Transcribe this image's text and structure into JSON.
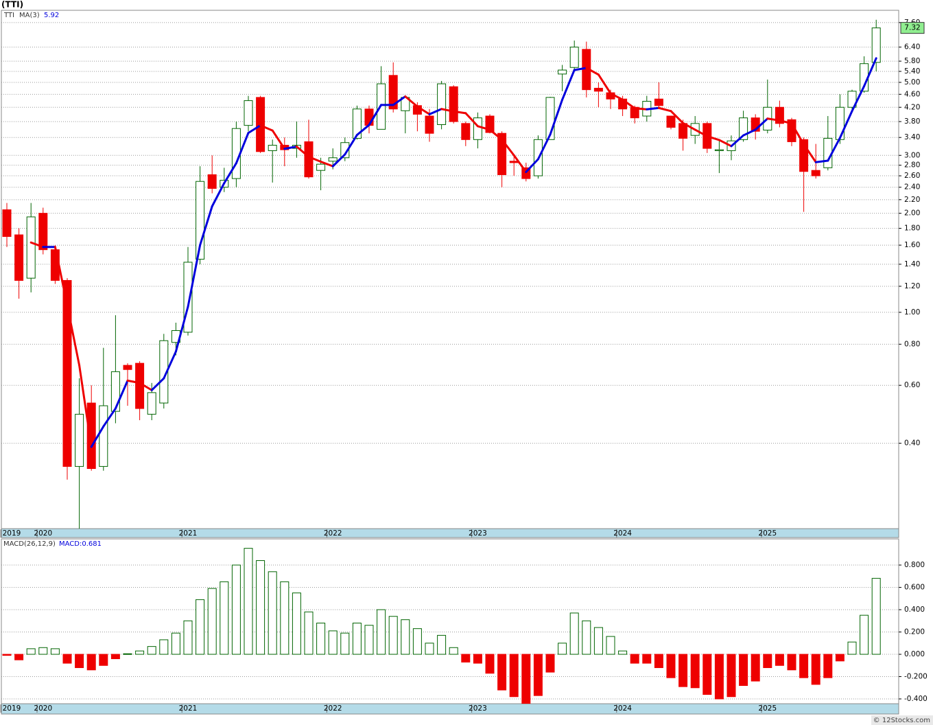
{
  "chart_data": [
    {
      "type": "candlestick",
      "title": "(TTI)",
      "symbol": "TTI",
      "log_scale": true,
      "grid": true,
      "up_color": "#006400",
      "down_color": "#ee0000",
      "last_price_color": "#90ee90",
      "categories": [
        "2019",
        null,
        null,
        "2020",
        null,
        null,
        null,
        null,
        null,
        null,
        null,
        null,
        null,
        null,
        null,
        "2021",
        null,
        null,
        null,
        null,
        null,
        null,
        null,
        null,
        null,
        null,
        null,
        "2022",
        null,
        null,
        null,
        null,
        null,
        null,
        null,
        null,
        null,
        null,
        null,
        "2023",
        null,
        null,
        null,
        null,
        null,
        null,
        null,
        null,
        null,
        null,
        null,
        "2024",
        null,
        null,
        null,
        null,
        null,
        null,
        null,
        null,
        null,
        null,
        null,
        "2025",
        null,
        null,
        null,
        null,
        null,
        null,
        null,
        null,
        null
      ],
      "open": [
        2.05,
        1.72,
        1.27,
        2.0,
        1.55,
        1.25,
        0.34,
        0.53,
        0.34,
        0.5,
        0.69,
        0.7,
        0.49,
        0.53,
        0.81,
        0.87,
        1.45,
        2.62,
        2.4,
        2.55,
        3.7,
        4.5,
        3.1,
        3.22,
        3.15,
        3.3,
        2.7,
        2.88,
        2.95,
        3.38,
        4.15,
        3.6,
        5.25,
        4.1,
        4.25,
        3.95,
        3.72,
        4.85,
        3.75,
        3.35,
        3.95,
        3.5,
        2.88,
        2.75,
        2.6,
        3.35,
        5.3,
        5.55,
        6.3,
        4.8,
        4.65,
        4.45,
        4.2,
        3.95,
        4.45,
        3.95,
        3.75,
        3.45,
        3.75,
        3.1,
        3.1,
        3.35,
        3.9,
        3.58,
        4.2,
        3.85,
        3.35,
        2.7,
        2.75,
        3.35,
        4.2,
        4.7,
        5.75
      ],
      "high": [
        2.15,
        1.8,
        2.15,
        2.08,
        1.6,
        1.27,
        0.63,
        0.6,
        0.78,
        0.98,
        0.7,
        0.71,
        0.61,
        0.86,
        0.93,
        1.58,
        2.78,
        3.0,
        2.75,
        3.8,
        4.55,
        4.55,
        3.35,
        3.4,
        3.8,
        3.85,
        2.95,
        3.15,
        3.4,
        4.25,
        4.25,
        5.6,
        5.75,
        4.55,
        4.35,
        4.15,
        5.05,
        4.9,
        3.8,
        4.05,
        4.0,
        3.55,
        3.0,
        2.85,
        3.45,
        4.52,
        5.65,
        6.7,
        6.65,
        5.0,
        4.75,
        4.55,
        4.25,
        4.55,
        5.0,
        3.95,
        3.85,
        3.95,
        3.8,
        3.35,
        3.45,
        4.1,
        4.0,
        5.1,
        4.4,
        3.9,
        3.4,
        3.25,
        3.95,
        4.6,
        4.75,
        6.0,
        7.75
      ],
      "low": [
        1.58,
        1.1,
        1.15,
        1.5,
        1.22,
        0.31,
        0.22,
        0.33,
        0.33,
        0.46,
        0.52,
        0.47,
        0.47,
        0.51,
        0.74,
        0.85,
        1.4,
        2.3,
        2.32,
        2.4,
        3.55,
        3.05,
        2.48,
        2.78,
        2.95,
        2.55,
        2.35,
        2.72,
        2.88,
        3.35,
        3.5,
        3.6,
        4.05,
        3.5,
        3.55,
        3.3,
        3.6,
        3.75,
        3.2,
        3.15,
        3.5,
        2.4,
        2.6,
        2.5,
        2.55,
        3.35,
        4.7,
        5.45,
        4.5,
        4.2,
        4.15,
        3.95,
        3.75,
        3.8,
        4.2,
        3.6,
        3.1,
        3.25,
        3.05,
        2.65,
        2.9,
        3.3,
        3.35,
        3.5,
        3.65,
        3.2,
        2.02,
        2.55,
        2.7,
        3.25,
        4.05,
        4.65,
        5.4
      ],
      "close": [
        1.7,
        1.25,
        1.95,
        1.55,
        1.25,
        0.34,
        0.49,
        0.335,
        0.52,
        0.66,
        0.67,
        0.51,
        0.57,
        0.82,
        0.88,
        1.42,
        2.5,
        2.38,
        2.52,
        3.62,
        4.4,
        3.08,
        3.22,
        3.12,
        3.22,
        2.58,
        2.82,
        2.95,
        3.28,
        4.15,
        3.7,
        4.95,
        4.15,
        4.5,
        4.0,
        3.5,
        4.95,
        3.8,
        3.35,
        3.9,
        3.52,
        2.62,
        2.85,
        2.55,
        3.35,
        4.5,
        5.45,
        6.4,
        4.75,
        4.7,
        4.45,
        4.15,
        3.9,
        4.38,
        4.25,
        3.65,
        3.38,
        3.75,
        3.15,
        3.12,
        3.32,
        3.9,
        3.55,
        4.2,
        3.75,
        3.3,
        2.68,
        2.6,
        3.38,
        4.2,
        4.7,
        5.7,
        7.32
      ],
      "overlay": {
        "name": "MA(3)",
        "up_color": "#0000dd",
        "down_color": "#ee0000",
        "values": [
          null,
          null,
          1.63,
          1.58,
          1.58,
          1.05,
          0.69,
          0.39,
          0.45,
          0.51,
          0.62,
          0.61,
          0.58,
          0.63,
          0.76,
          1.04,
          1.6,
          2.1,
          2.47,
          2.84,
          3.51,
          3.7,
          3.57,
          3.14,
          3.19,
          2.97,
          2.87,
          2.78,
          3.02,
          3.46,
          3.71,
          4.27,
          4.27,
          4.53,
          4.22,
          4.0,
          4.15,
          4.08,
          4.03,
          3.68,
          3.59,
          3.35,
          3.0,
          2.67,
          2.92,
          3.47,
          4.43,
          5.45,
          5.53,
          5.28,
          4.63,
          4.43,
          4.17,
          4.14,
          4.18,
          4.09,
          3.76,
          3.59,
          3.43,
          3.34,
          3.2,
          3.45,
          3.59,
          3.88,
          3.83,
          3.75,
          3.24,
          2.86,
          2.89,
          3.39,
          4.09,
          4.87,
          5.92
        ]
      },
      "ylim": [
        0.22,
        8.28
      ],
      "yticks": [
        {
          "value": 0.4,
          "label": "0.40"
        },
        {
          "value": 0.6,
          "label": "0.60"
        },
        {
          "value": 0.8,
          "label": "0.80"
        },
        {
          "value": 1.0,
          "label": "1.00"
        },
        {
          "value": 1.2,
          "label": "1.20"
        },
        {
          "value": 1.4,
          "label": "1.40"
        },
        {
          "value": 1.6,
          "label": "1.60"
        },
        {
          "value": 1.8,
          "label": "1.80"
        },
        {
          "value": 2.0,
          "label": "2.00"
        },
        {
          "value": 2.2,
          "label": "2.20"
        },
        {
          "value": 2.4,
          "label": "2.40"
        },
        {
          "value": 2.6,
          "label": "2.60"
        },
        {
          "value": 2.8,
          "label": "2.80"
        },
        {
          "value": 3.0,
          "label": "3.00"
        },
        {
          "value": 3.4,
          "label": "3.40"
        },
        {
          "value": 3.8,
          "label": "3.80"
        },
        {
          "value": 4.2,
          "label": "4.20"
        },
        {
          "value": 4.6,
          "label": "4.60"
        },
        {
          "value": 5.0,
          "label": "5.00"
        },
        {
          "value": 5.4,
          "label": "5.40"
        },
        {
          "value": 5.8,
          "label": "5.80"
        },
        {
          "value": 6.4,
          "label": "6.40"
        },
        {
          "value": 7.6,
          "label": "7.60"
        }
      ]
    },
    {
      "type": "bar",
      "name": "MACD(26,12,9)",
      "value_name": "MACD:",
      "grid": true,
      "up_color": "#006400",
      "down_color": "#ee0000",
      "categories": [
        "2019",
        null,
        null,
        "2020",
        null,
        null,
        null,
        null,
        null,
        null,
        null,
        null,
        null,
        null,
        null,
        "2021",
        null,
        null,
        null,
        null,
        null,
        null,
        null,
        null,
        null,
        null,
        null,
        "2022",
        null,
        null,
        null,
        null,
        null,
        null,
        null,
        null,
        null,
        null,
        null,
        "2023",
        null,
        null,
        null,
        null,
        null,
        null,
        null,
        null,
        null,
        null,
        null,
        "2024",
        null,
        null,
        null,
        null,
        null,
        null,
        null,
        null,
        null,
        null,
        null,
        "2025",
        null,
        null,
        null,
        null,
        null,
        null,
        null,
        null,
        null
      ],
      "values": [
        -0.01,
        -0.05,
        0.05,
        0.06,
        0.05,
        -0.08,
        -0.12,
        -0.14,
        -0.1,
        -0.04,
        0.005,
        0.03,
        0.07,
        0.13,
        0.19,
        0.3,
        0.49,
        0.59,
        0.65,
        0.8,
        0.95,
        0.84,
        0.74,
        0.65,
        0.55,
        0.38,
        0.28,
        0.21,
        0.19,
        0.28,
        0.26,
        0.4,
        0.34,
        0.31,
        0.23,
        0.1,
        0.17,
        0.06,
        -0.07,
        -0.08,
        -0.17,
        -0.32,
        -0.38,
        -0.44,
        -0.37,
        -0.16,
        0.1,
        0.37,
        0.3,
        0.24,
        0.16,
        0.03,
        -0.08,
        -0.08,
        -0.12,
        -0.21,
        -0.29,
        -0.3,
        -0.36,
        -0.4,
        -0.38,
        -0.28,
        -0.24,
        -0.12,
        -0.1,
        -0.14,
        -0.21,
        -0.27,
        -0.21,
        -0.06,
        0.11,
        0.35,
        0.681
      ],
      "ylim": [
        -0.443,
        1.034
      ],
      "yticks": [
        {
          "value": -0.4,
          "label": "-0.400"
        },
        {
          "value": -0.2,
          "label": "-0.200"
        },
        {
          "value": 0,
          "label": "0.000"
        },
        {
          "value": 0.2,
          "label": "0.200"
        },
        {
          "value": 0.4,
          "label": "0.400"
        },
        {
          "value": 0.6,
          "label": "0.600"
        },
        {
          "value": 0.8,
          "label": "0.800"
        }
      ]
    }
  ],
  "footer": "© 12Stocks.com"
}
